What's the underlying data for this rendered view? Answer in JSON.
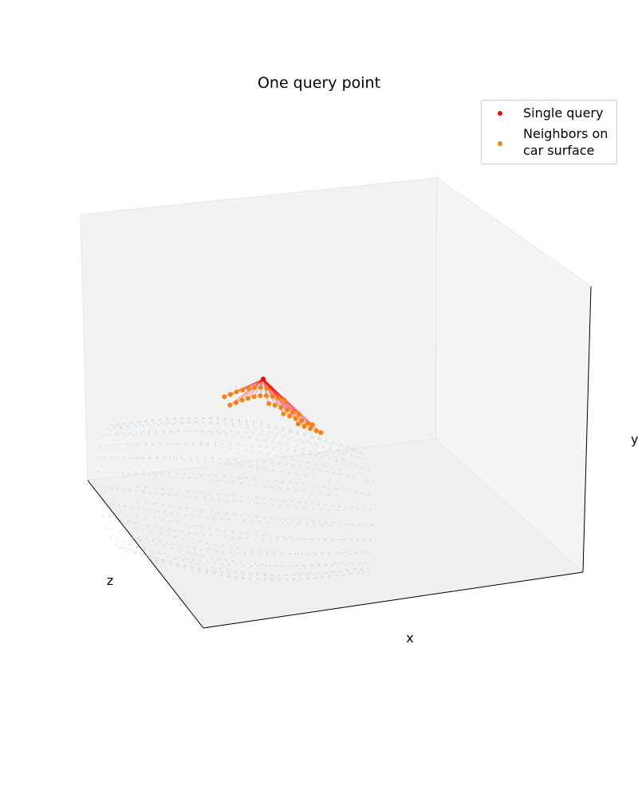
{
  "chart_data": {
    "type": "scatter",
    "projection": "3d",
    "title": "One query point",
    "xlabel": "x",
    "ylabel": "y",
    "zlabel": "z",
    "grid": false,
    "ticks": "hidden",
    "legend_placement": "top-right",
    "series": [
      {
        "name": "Single query",
        "color": "#ff0000",
        "marker_size": "small",
        "points": [
          [
            0.0,
            0.7,
            0.0
          ]
        ]
      },
      {
        "name": "Neighbors on car surface",
        "legend_label_lines": [
          "Neighbors on",
          "car surface"
        ],
        "color": "#ff7f0e",
        "marker_size": "small",
        "description": "nearest neighbors sampled on the upper car surface around the query, each connected to the query by a red line",
        "points": [
          [
            -0.38,
            0.38,
            0.18
          ],
          [
            -0.3,
            0.4,
            0.18
          ],
          [
            -0.22,
            0.42,
            0.18
          ],
          [
            -0.14,
            0.43,
            0.18
          ],
          [
            -0.06,
            0.44,
            0.18
          ],
          [
            0.02,
            0.44,
            0.18
          ],
          [
            0.1,
            0.43,
            0.18
          ],
          [
            0.18,
            0.41,
            0.18
          ],
          [
            -0.38,
            0.36,
            0.08
          ],
          [
            -0.3,
            0.38,
            0.08
          ],
          [
            -0.22,
            0.4,
            0.08
          ],
          [
            -0.14,
            0.41,
            0.08
          ],
          [
            -0.06,
            0.42,
            0.08
          ],
          [
            0.02,
            0.42,
            0.08
          ],
          [
            0.1,
            0.41,
            0.08
          ],
          [
            0.18,
            0.39,
            0.08
          ],
          [
            0.26,
            0.36,
            0.08
          ],
          [
            0.34,
            0.32,
            0.08
          ],
          [
            0.06,
            0.4,
            -0.02
          ],
          [
            0.14,
            0.37,
            -0.02
          ],
          [
            0.22,
            0.33,
            -0.02
          ],
          [
            0.3,
            0.29,
            -0.02
          ],
          [
            0.38,
            0.25,
            -0.02
          ],
          [
            0.46,
            0.21,
            -0.02
          ],
          [
            0.18,
            0.34,
            -0.12
          ],
          [
            0.26,
            0.3,
            -0.12
          ],
          [
            0.34,
            0.26,
            -0.12
          ],
          [
            0.42,
            0.22,
            -0.12
          ],
          [
            0.5,
            0.18,
            -0.12
          ],
          [
            0.56,
            0.15,
            -0.12
          ],
          [
            0.3,
            0.28,
            -0.22
          ],
          [
            0.38,
            0.24,
            -0.22
          ],
          [
            0.46,
            0.2,
            -0.22
          ],
          [
            0.54,
            0.16,
            -0.22
          ],
          [
            0.6,
            0.13,
            -0.22
          ]
        ]
      }
    ],
    "background_series": {
      "color": "#aecde4",
      "alpha": 0.5,
      "description": "car body surface point cloud (unlabeled)"
    },
    "connections": {
      "color": "#ff0000",
      "alpha": 0.35,
      "from": "Single query",
      "to": "Neighbors on car surface"
    }
  }
}
